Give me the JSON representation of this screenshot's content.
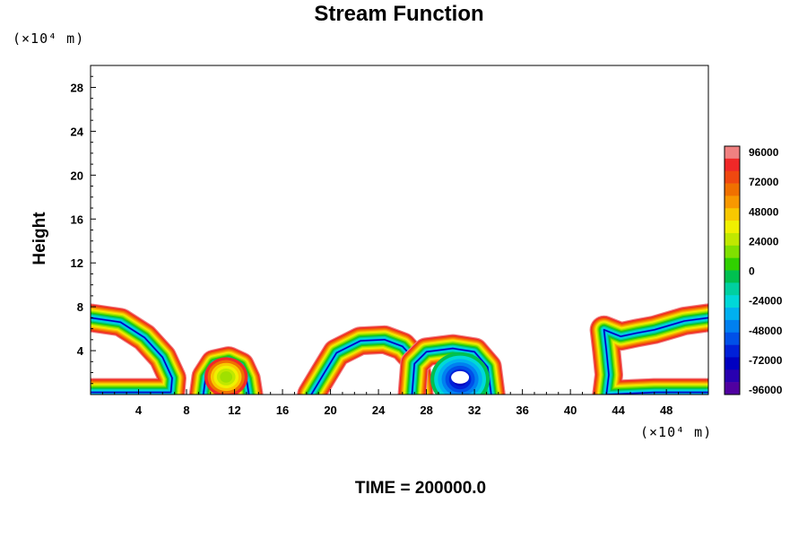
{
  "chart_data": {
    "type": "contour",
    "title": "Stream Function",
    "ylabel": "Height",
    "xlabel": "",
    "x_unit": "(×10⁴ m)",
    "y_unit": "(×10⁴ m)",
    "xlim": [
      0,
      51.5
    ],
    "ylim": [
      0,
      30
    ],
    "x_ticks": [
      4,
      8,
      12,
      16,
      20,
      24,
      28,
      32,
      36,
      40,
      44,
      48
    ],
    "y_ticks": [
      4,
      8,
      12,
      16,
      20,
      24,
      28
    ],
    "colorbar": {
      "min": -96000,
      "max": 96000,
      "step": 6000,
      "labels": [
        96000,
        72000,
        48000,
        24000,
        0,
        -24000,
        -48000,
        -72000,
        -96000
      ],
      "colors": [
        "#f08080",
        "#f02828",
        "#f04810",
        "#f07000",
        "#f89800",
        "#f8c800",
        "#f0f000",
        "#c0e800",
        "#80e000",
        "#30d000",
        "#00c050",
        "#00d0a0",
        "#00d8d8",
        "#00b0f0",
        "#0080f0",
        "#0050e8",
        "#0020d8",
        "#0000c0",
        "#2800b0",
        "#5000a0"
      ]
    },
    "contour_lines": [
      {
        "name": "left",
        "points": [
          [
            0,
            7.0
          ],
          [
            2.5,
            6.6
          ],
          [
            4.5,
            5.2
          ],
          [
            6.0,
            3.4
          ],
          [
            6.8,
            1.5
          ],
          [
            6.7,
            0.2
          ],
          [
            4,
            0.2
          ],
          [
            0,
            0.2
          ]
        ]
      },
      {
        "name": "left-bump",
        "points": [
          [
            9.4,
            0
          ],
          [
            9.6,
            1.6
          ],
          [
            10.3,
            2.8
          ],
          [
            11.5,
            3.1
          ],
          [
            12.5,
            2.6
          ],
          [
            13.0,
            1.4
          ],
          [
            13.2,
            0
          ]
        ]
      },
      {
        "name": "center",
        "points": [
          [
            18.4,
            0
          ],
          [
            19.5,
            2.0
          ],
          [
            20.5,
            3.8
          ],
          [
            22.5,
            4.9
          ],
          [
            24.5,
            5.0
          ],
          [
            26.0,
            4.4
          ],
          [
            27.0,
            3.2
          ],
          [
            27.3,
            1.5
          ],
          [
            27.4,
            0
          ]
        ]
      },
      {
        "name": "center-right",
        "points": [
          [
            26.8,
            0
          ],
          [
            27.0,
            2.8
          ],
          [
            28.0,
            3.9
          ],
          [
            30.2,
            4.2
          ],
          [
            32.0,
            3.9
          ],
          [
            33.1,
            2.5
          ],
          [
            33.4,
            0
          ]
        ]
      },
      {
        "name": "right",
        "points": [
          [
            51.5,
            7.0
          ],
          [
            49.5,
            6.7
          ],
          [
            47.0,
            5.9
          ],
          [
            45.5,
            5.6
          ],
          [
            44.2,
            5.3
          ],
          [
            42.8,
            5.9
          ],
          [
            43.0,
            4.0
          ],
          [
            43.2,
            1.8
          ],
          [
            43.0,
            0
          ],
          [
            47,
            0.2
          ],
          [
            51.5,
            0.2
          ]
        ]
      }
    ],
    "centers": [
      {
        "name": "negative-core",
        "x": 30.8,
        "y": 1.4,
        "level": -96000
      },
      {
        "name": "positive-core",
        "x": 11.3,
        "y": 1.6,
        "level": 24000
      }
    ],
    "footer": "TIME = 200000.0"
  }
}
